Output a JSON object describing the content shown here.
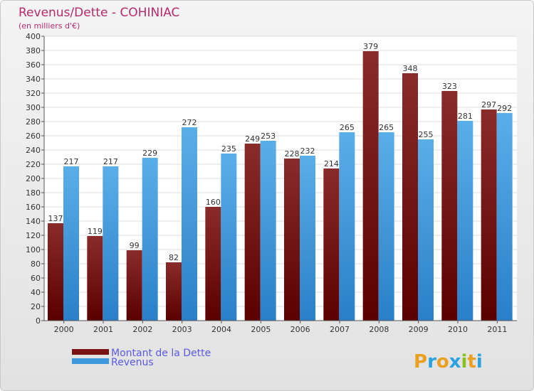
{
  "chart_data": {
    "type": "bar",
    "title": "Revenus/Dette - COHINIAC",
    "subtitle": "(en milliers d'€)",
    "xlabel": "",
    "ylabel": "",
    "ylim": [
      0,
      400
    ],
    "ytick_step": 20,
    "grid": true,
    "categories": [
      "2000",
      "2001",
      "2002",
      "2003",
      "2004",
      "2005",
      "2006",
      "2007",
      "2008",
      "2009",
      "2010",
      "2011"
    ],
    "series": [
      {
        "name": "Montant de la Dette",
        "color": "#7a1212",
        "values": [
          137,
          119,
          99,
          82,
          160,
          249,
          228,
          214,
          379,
          348,
          323,
          297
        ]
      },
      {
        "name": "Revenus",
        "color": "#3f98dc",
        "values": [
          217,
          217,
          229,
          272,
          235,
          253,
          232,
          265,
          265,
          255,
          281,
          292
        ]
      }
    ],
    "legend_position": "bottom-left"
  },
  "brand": {
    "letters": [
      "P",
      "r",
      "o",
      "x",
      "i",
      "t",
      "i"
    ],
    "colors": [
      "#e8a020",
      "#2aa2e0",
      "#e8a020",
      "#2aa2e0",
      "#88c020",
      "#e8a020",
      "#2aa2e0"
    ]
  }
}
